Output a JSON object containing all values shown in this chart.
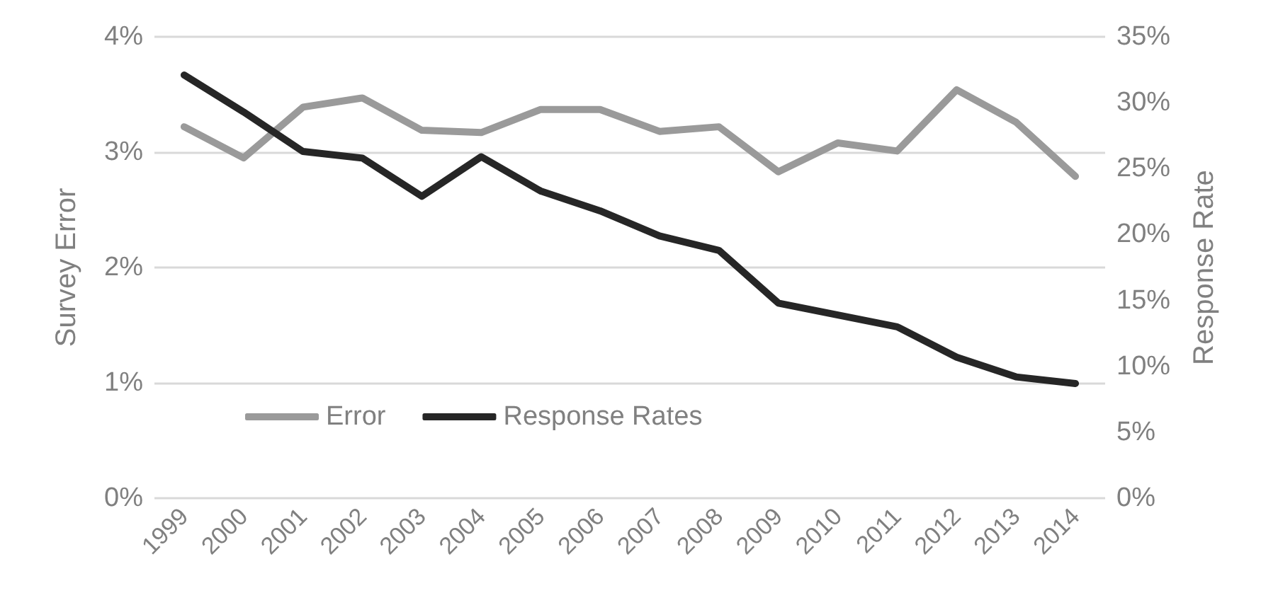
{
  "chart_data": {
    "type": "line",
    "ylabel": "Survey Error",
    "y2label": "Response Rate",
    "categories": [
      "1999",
      "2000",
      "2001",
      "2002",
      "2003",
      "2004",
      "2005",
      "2006",
      "2007",
      "2008",
      "2009",
      "2010",
      "2011",
      "2012",
      "2013",
      "2014"
    ],
    "series": [
      {
        "name": "Error",
        "color": "#9a9a9a",
        "values": [
          3.22,
          2.95,
          3.39,
          3.47,
          3.19,
          3.17,
          3.37,
          3.37,
          3.18,
          3.22,
          2.83,
          3.08,
          3.01,
          3.54,
          3.26,
          2.79
        ]
      },
      {
        "name": "Response Rates",
        "color": "#262626",
        "axis": "y2",
        "values": [
          32.1,
          29.3,
          26.3,
          25.8,
          22.9,
          25.9,
          23.3,
          21.8,
          19.9,
          18.8,
          14.8,
          13.9,
          13.0,
          10.7,
          9.2,
          8.7
        ]
      }
    ],
    "ylim": [
      0,
      4
    ],
    "yticks": [
      {
        "value": 0,
        "label": "0%"
      },
      {
        "value": 1,
        "label": "1%"
      },
      {
        "value": 2,
        "label": "2%"
      },
      {
        "value": 3,
        "label": "3%"
      },
      {
        "value": 4,
        "label": "4%"
      }
    ],
    "y2lim": [
      0,
      35
    ],
    "y2ticks": [
      {
        "value": 0,
        "label": "0%"
      },
      {
        "value": 5,
        "label": "5%"
      },
      {
        "value": 10,
        "label": "10%"
      },
      {
        "value": 15,
        "label": "15%"
      },
      {
        "value": 20,
        "label": "20%"
      },
      {
        "value": 25,
        "label": "25%"
      },
      {
        "value": 30,
        "label": "30%"
      },
      {
        "value": 35,
        "label": "35%"
      }
    ],
    "grid": "y",
    "legend": "bottom left",
    "marker": "none",
    "line_style": "solid"
  }
}
